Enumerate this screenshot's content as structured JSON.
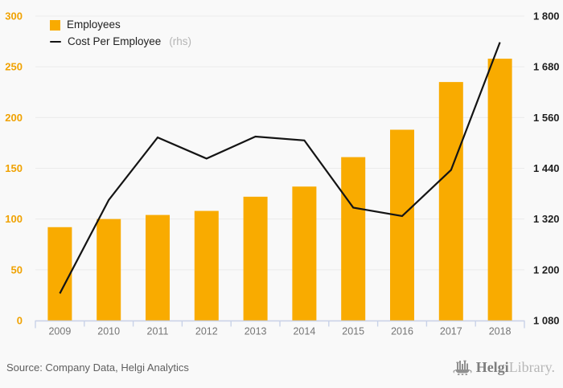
{
  "legend": {
    "items": [
      {
        "label": "Employees",
        "suffix": ""
      },
      {
        "label": "Cost Per Employee",
        "suffix": "(rhs)"
      }
    ]
  },
  "footer": {
    "source": "Source: Company Data, Helgi Analytics",
    "logo_brand": "Helgi",
    "logo_suffix": "Library."
  },
  "colors": {
    "background": "#f9f9f9",
    "bar": "#F9AB00",
    "line": "#141414",
    "grid": "#ebebeb",
    "axis": "#c9d2e8",
    "left_label": "#F0A202",
    "right_label": "#1f1f1f",
    "year_label": "#757575",
    "logo_gray": "#909090"
  },
  "chart_data": {
    "type": "bar",
    "title": "",
    "categories": [
      "2009",
      "2010",
      "2011",
      "2012",
      "2013",
      "2014",
      "2015",
      "2016",
      "2017",
      "2018"
    ],
    "series": [
      {
        "name": "Employees",
        "type": "bar",
        "axis": "left",
        "values": [
          92,
          100,
          104,
          108,
          122,
          132,
          161,
          188,
          235,
          258
        ]
      },
      {
        "name": "Cost Per Employee (rhs)",
        "type": "line",
        "axis": "right",
        "values": [
          1144,
          1365,
          1513,
          1463,
          1515,
          1506,
          1347,
          1327,
          1436,
          1738
        ]
      }
    ],
    "left_axis": {
      "min": 0,
      "max": 300,
      "ticks": [
        {
          "value": 300,
          "label": "300"
        },
        {
          "value": 250,
          "label": "250"
        },
        {
          "value": 200,
          "label": "200"
        },
        {
          "value": 150,
          "label": "150"
        },
        {
          "value": 100,
          "label": "100"
        },
        {
          "value": 50,
          "label": "50"
        },
        {
          "value": 0,
          "label": "0"
        }
      ]
    },
    "right_axis": {
      "min": 1080,
      "max": 1800,
      "ticks": [
        {
          "value": 1800,
          "label": "1 800"
        },
        {
          "value": 1680,
          "label": "1 680"
        },
        {
          "value": 1560,
          "label": "1 560"
        },
        {
          "value": 1440,
          "label": "1 440"
        },
        {
          "value": 1320,
          "label": "1 320"
        },
        {
          "value": 1200,
          "label": "1 200"
        },
        {
          "value": 1080,
          "label": "1 080"
        }
      ]
    },
    "grid": "horizontal-only",
    "legend_position": "top-left-inside",
    "xlabel": "",
    "ylabel": ""
  }
}
